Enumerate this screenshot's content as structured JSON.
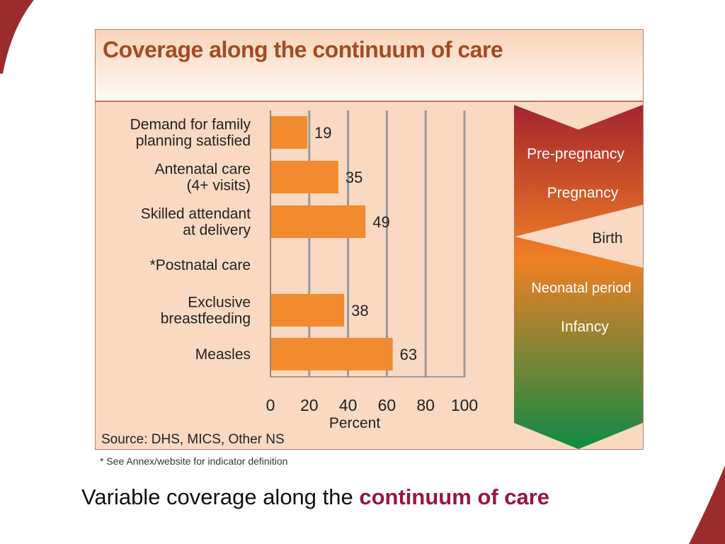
{
  "slide": {
    "caption_plain": "Variable coverage along the ",
    "caption_accent": "continuum of care",
    "footnote": "* See Annex/website for indicator definition",
    "accent_color": "#9b1541",
    "decor_color": "#9b2c2e"
  },
  "chart_data": {
    "type": "bar",
    "orientation": "horizontal",
    "title": "Coverage along the continuum of care",
    "categories": [
      [
        "Demand for family",
        "planning satisfied"
      ],
      [
        "Antenatal care",
        "(4+ visits)"
      ],
      [
        "Skilled attendant",
        "at delivery"
      ],
      [
        "*Postnatal care"
      ],
      [
        "Exclusive",
        "breastfeeding"
      ],
      [
        "Measles"
      ]
    ],
    "values": [
      19,
      35,
      49,
      null,
      38,
      63
    ],
    "value_labels": [
      "19",
      "35",
      "49",
      "",
      "38",
      "63"
    ],
    "xlabel": "Percent",
    "ylabel": "",
    "xlim": [
      0,
      100
    ],
    "xticks": [
      0,
      20,
      40,
      60,
      80,
      100
    ],
    "grid": true,
    "bar_color": "#f28a30",
    "source": "Source: DHS, MICS, Other NS",
    "stages": [
      "Pre-pregnancy",
      "Pregnancy",
      "Birth",
      "Neonatal period",
      "Infancy"
    ],
    "stage_colors": {
      "top": "#a4242e",
      "middle": "#f07f24",
      "bottom": "#0f8a44"
    }
  }
}
